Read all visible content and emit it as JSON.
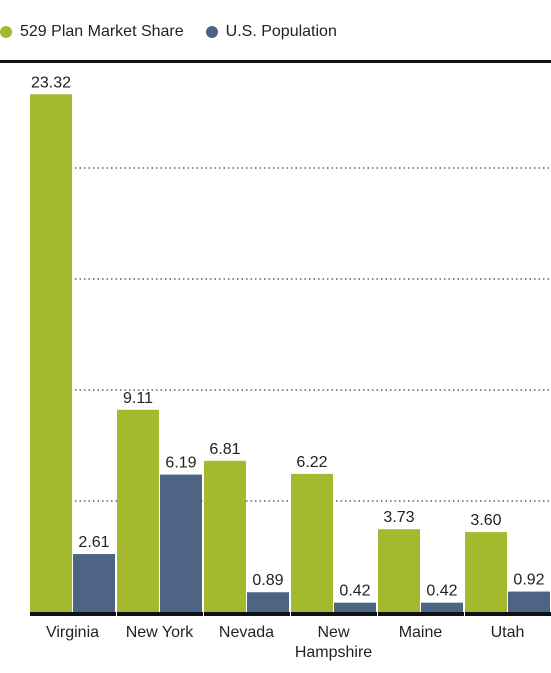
{
  "chart_data": {
    "type": "bar",
    "categories": [
      "Virginia",
      "New York",
      "Nevada",
      "New Hampshire",
      "Maine",
      "Utah"
    ],
    "category_lines": [
      [
        "Virginia"
      ],
      [
        "New York"
      ],
      [
        "Nevada"
      ],
      [
        "New",
        "Hampshire"
      ],
      [
        "Maine"
      ],
      [
        "Utah"
      ]
    ],
    "series": [
      {
        "name": "529 Plan Market Share",
        "values": [
          23.32,
          9.11,
          6.81,
          6.22,
          3.73,
          3.6
        ],
        "labels": [
          "23.32",
          "9.11",
          "6.81",
          "6.22",
          "3.73",
          "3.60"
        ],
        "color": "#a3ba2f"
      },
      {
        "name": "U.S. Population",
        "values": [
          2.61,
          6.19,
          0.89,
          0.42,
          0.42,
          0.92
        ],
        "labels": [
          "2.61",
          "6.19",
          "0.89",
          "0.42",
          "0.42",
          "0.92"
        ],
        "color": "#4e6485"
      }
    ],
    "ylim": [
      0,
      25
    ],
    "gridlines": [
      5,
      10,
      15,
      20
    ],
    "grid": true,
    "legend_position": "top-left",
    "title": "",
    "xlabel": "",
    "ylabel": ""
  }
}
